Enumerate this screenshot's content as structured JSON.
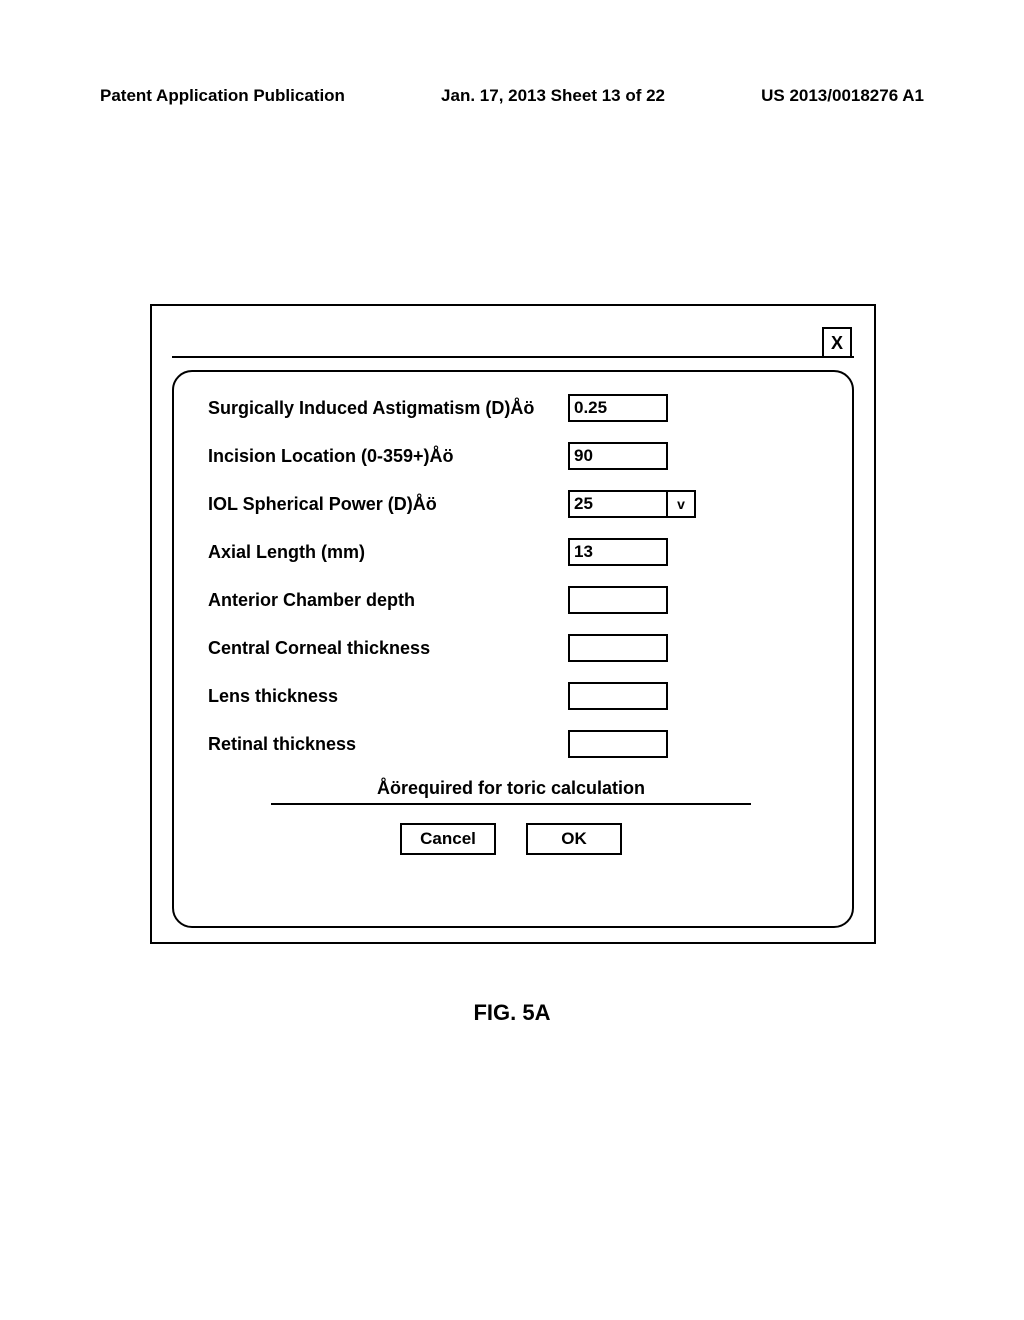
{
  "header": {
    "left": "Patent Application Publication",
    "center": "Jan. 17, 2013  Sheet 13 of 22",
    "right": "US 2013/0018276 A1"
  },
  "titlebar": {
    "close": "X"
  },
  "fields": {
    "sia": {
      "label": "Surgically Induced Astigmatism (D)Åö",
      "value": "0.25"
    },
    "incision": {
      "label": "Incision Location (0-359+)Åö",
      "value": "90"
    },
    "iol": {
      "label": "IOL Spherical Power (D)Åö",
      "value": "25",
      "arrow": "v"
    },
    "axial": {
      "label": "Axial Length (mm)",
      "value": "13"
    },
    "acd": {
      "label": "Anterior Chamber depth",
      "value": ""
    },
    "cct": {
      "label": "Central Corneal thickness",
      "value": ""
    },
    "lens": {
      "label": "Lens thickness",
      "value": ""
    },
    "retinal": {
      "label": "Retinal thickness",
      "value": ""
    }
  },
  "note": "Åörequired for toric calculation",
  "buttons": {
    "cancel": "Cancel",
    "ok": "OK"
  },
  "figure": "FIG. 5A"
}
